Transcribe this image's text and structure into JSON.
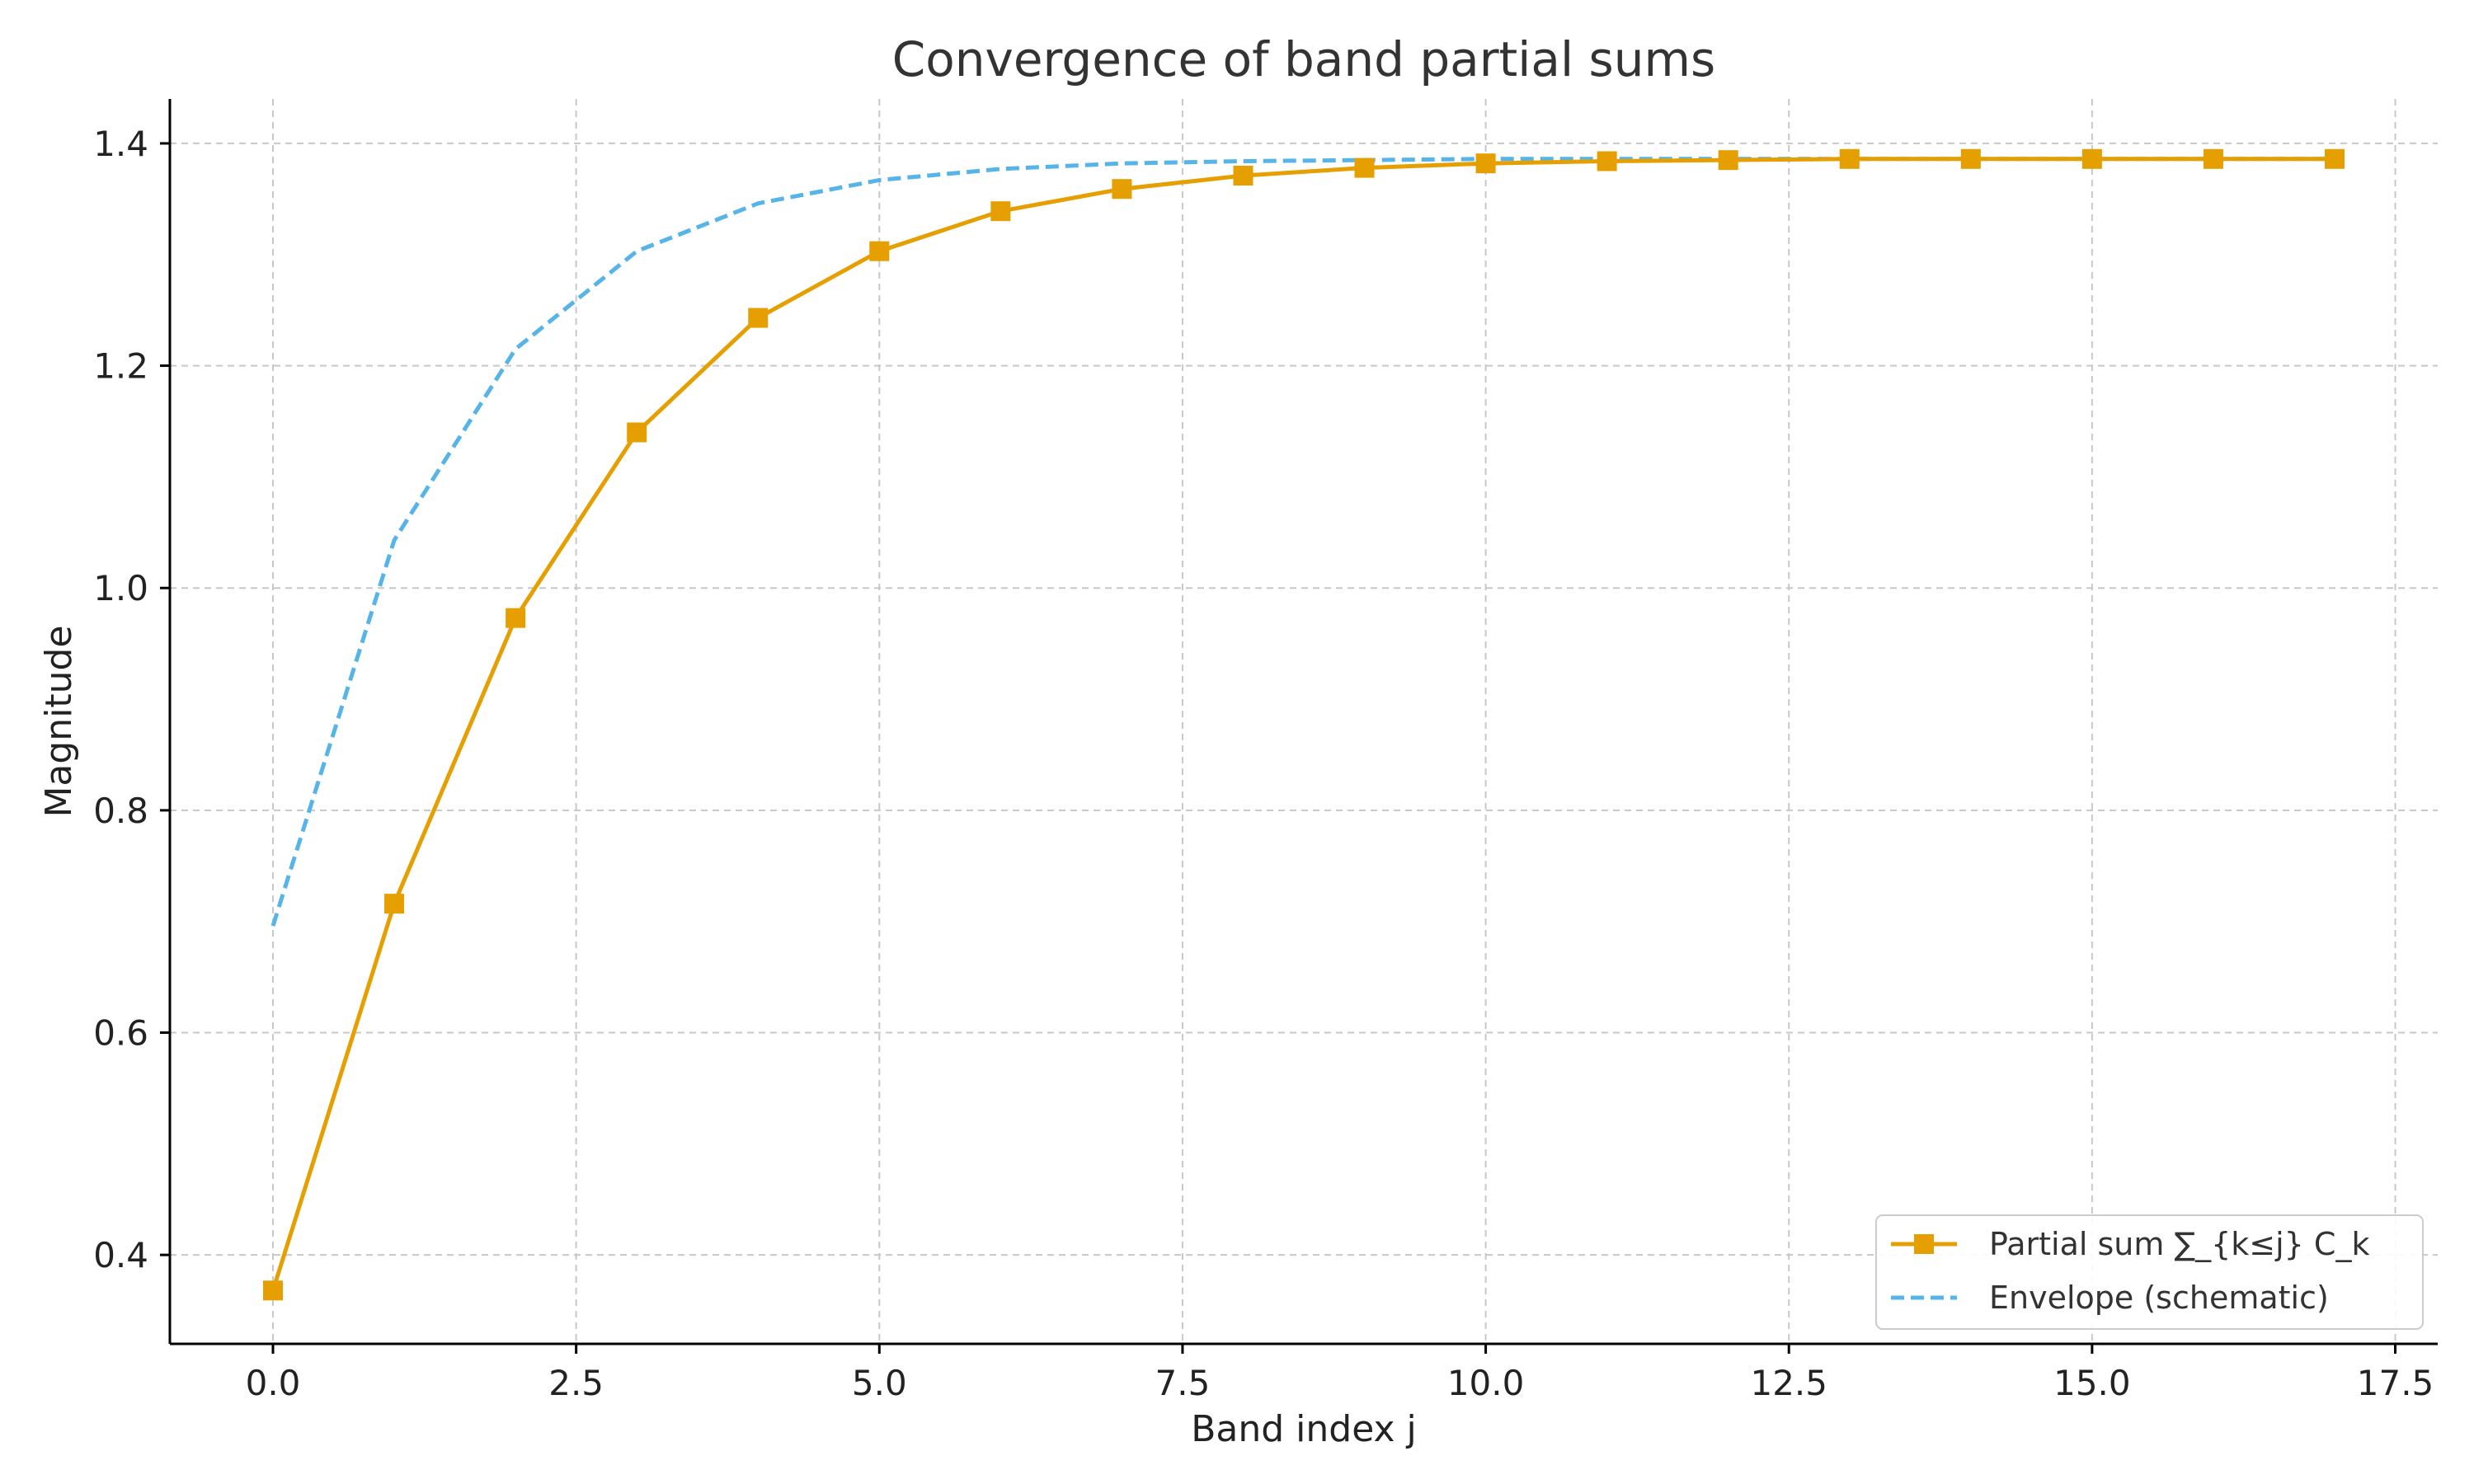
{
  "chart_data": {
    "type": "line",
    "title": "Convergence of band partial sums",
    "xlabel": "Band index j",
    "ylabel": "Magnitude",
    "xlim": [
      -0.85,
      17.85
    ],
    "ylim": [
      0.32,
      1.44
    ],
    "x_ticks": [
      0,
      2.5,
      5,
      7.5,
      10,
      12.5,
      15,
      17.5
    ],
    "x_tick_labels": [
      "0.0",
      "2.5",
      "5.0",
      "7.5",
      "10.0",
      "12.5",
      "15.0",
      "17.5"
    ],
    "y_ticks": [
      0.4,
      0.6,
      0.8,
      1.0,
      1.2,
      1.4
    ],
    "y_tick_labels": [
      "0.4",
      "0.6",
      "0.8",
      "1.0",
      "1.2",
      "1.4"
    ],
    "grid": true,
    "legend_position": "lower-right",
    "series": [
      {
        "name": "Partial sum ∑_{k≤j} C_k",
        "color": "#E69F00",
        "style": "solid",
        "marker": "square",
        "x": [
          0,
          1,
          2,
          3,
          4,
          5,
          6,
          7,
          8,
          9,
          10,
          11,
          12,
          13,
          14,
          15,
          16,
          17
        ],
        "y": [
          0.368,
          0.716,
          0.973,
          1.14,
          1.243,
          1.303,
          1.339,
          1.359,
          1.371,
          1.378,
          1.382,
          1.384,
          1.385,
          1.386,
          1.386,
          1.386,
          1.386,
          1.386
        ]
      },
      {
        "name": "Envelope (schematic)",
        "color": "#56B4E9",
        "style": "dashed",
        "marker": "none",
        "x": [
          0,
          1,
          2,
          3,
          4,
          5,
          6,
          7,
          8,
          9,
          10,
          11,
          12,
          13,
          14,
          15,
          16,
          17
        ],
        "y": [
          0.696,
          1.043,
          1.215,
          1.303,
          1.346,
          1.367,
          1.377,
          1.382,
          1.384,
          1.385,
          1.386,
          1.386,
          1.386,
          1.386,
          1.386,
          1.386,
          1.386,
          1.386
        ]
      }
    ]
  }
}
